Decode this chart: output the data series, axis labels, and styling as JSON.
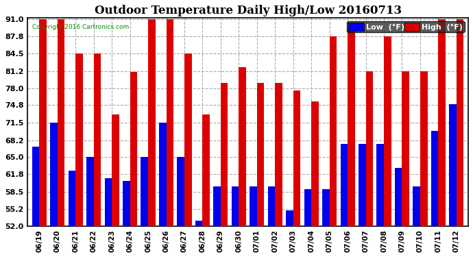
{
  "title": "Outdoor Temperature Daily High/Low 20160713",
  "copyright": "Copyright 2016 Cartronics.com",
  "legend_low": "Low  (°F)",
  "legend_high": "High  (°F)",
  "categories": [
    "06/19",
    "06/20",
    "06/21",
    "06/22",
    "06/23",
    "06/24",
    "06/25",
    "06/26",
    "06/27",
    "06/28",
    "06/29",
    "06/30",
    "07/01",
    "07/02",
    "07/03",
    "07/04",
    "07/05",
    "07/06",
    "07/07",
    "07/08",
    "07/09",
    "07/10",
    "07/11",
    "07/12"
  ],
  "highs": [
    91.0,
    91.0,
    84.5,
    84.5,
    73.0,
    81.0,
    91.0,
    91.0,
    84.5,
    73.0,
    79.0,
    82.0,
    79.0,
    79.0,
    77.5,
    75.5,
    87.8,
    89.0,
    81.2,
    87.8,
    81.2,
    81.2,
    91.0,
    91.0
  ],
  "lows": [
    67.0,
    71.5,
    62.5,
    65.0,
    61.0,
    60.5,
    65.0,
    71.5,
    65.0,
    53.0,
    59.5,
    59.5,
    59.5,
    59.5,
    55.0,
    59.0,
    59.0,
    67.5,
    67.5,
    67.5,
    63.0,
    59.5,
    70.0,
    75.0
  ],
  "ylim_min": 52.0,
  "ylim_max": 91.0,
  "yticks": [
    52.0,
    55.2,
    58.5,
    61.8,
    65.0,
    68.2,
    71.5,
    74.8,
    78.0,
    81.2,
    84.5,
    87.8,
    91.0
  ],
  "bar_color_low": "#0000ee",
  "bar_color_high": "#dd0000",
  "grid_color": "#aaaaaa",
  "background_color": "#ffffff",
  "plot_bg_color": "#ffffff",
  "title_fontsize": 12,
  "bar_width": 0.4,
  "figsize": [
    6.9,
    3.75
  ],
  "dpi": 100
}
